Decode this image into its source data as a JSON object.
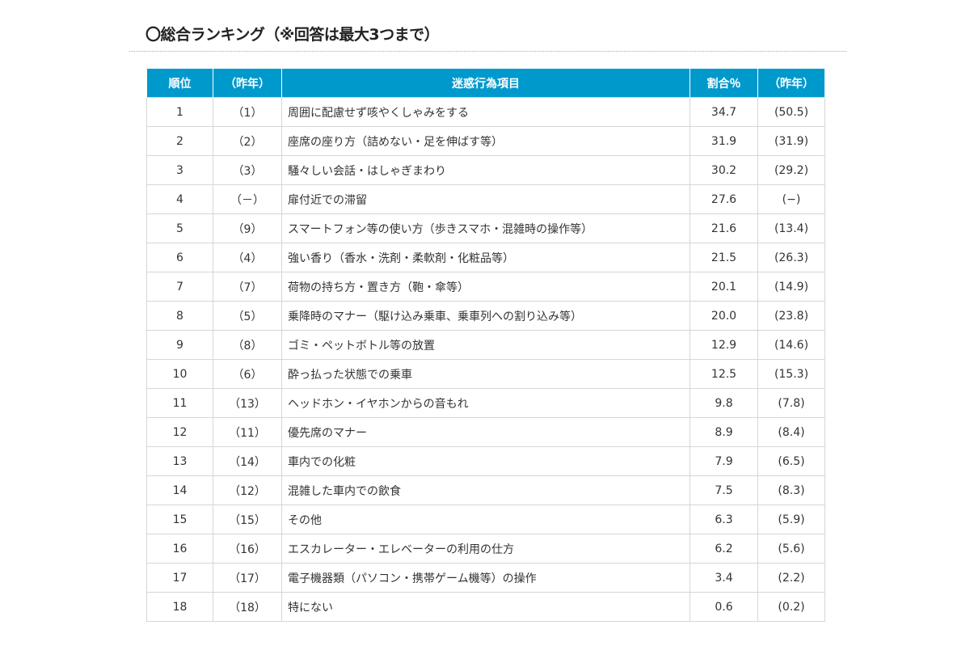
{
  "title": "〇総合ランキング（※回答は最大3つまで）",
  "header_color": "#0099cc",
  "columns": [
    "順位",
    "（昨年）",
    "迷惑行為項目",
    "割合％",
    "（昨年）"
  ],
  "rows": [
    [
      "1",
      "（1）",
      "周囲に配慮せず咳やくしゃみをする",
      "34.7",
      "(50.5)"
    ],
    [
      "2",
      "（2）",
      "座席の座り方（詰めない・足を伸ばす等）",
      "31.9",
      "(31.9)"
    ],
    [
      "3",
      "（3）",
      "騒々しい会話・はしゃぎまわり",
      "30.2",
      "(29.2)"
    ],
    [
      "4",
      "（－）",
      "扉付近での滞留",
      "27.6",
      "(−)"
    ],
    [
      "5",
      "（9）",
      "スマートフォン等の使い方（歩きスマホ・混雑時の操作等）",
      "21.6",
      "(13.4)"
    ],
    [
      "6",
      "（4）",
      "強い香り（香水・洗剤・柔軟剤・化粧品等）",
      "21.5",
      "(26.3)"
    ],
    [
      "7",
      "（7）",
      "荷物の持ち方・置き方（鞄・傘等）",
      "20.1",
      "(14.9)"
    ],
    [
      "8",
      "（5）",
      "乗降時のマナー（駆け込み乗車、乗車列への割り込み等）",
      "20.0",
      "(23.8)"
    ],
    [
      "9",
      "（8）",
      "ゴミ・ペットボトル等の放置",
      "12.9",
      "(14.6)"
    ],
    [
      "10",
      "（6）",
      "酔っ払った状態での乗車",
      "12.5",
      "(15.3)"
    ],
    [
      "11",
      "（13）",
      "ヘッドホン・イヤホンからの音もれ",
      "9.8",
      "(7.8)"
    ],
    [
      "12",
      "（11）",
      "優先席のマナー",
      "8.9",
      "(8.4)"
    ],
    [
      "13",
      "（14）",
      "車内での化粧",
      "7.9",
      "(6.5)"
    ],
    [
      "14",
      "（12）",
      "混雑した車内での飲食",
      "7.5",
      "(8.3)"
    ],
    [
      "15",
      "（15）",
      "その他",
      "6.3",
      "(5.9)"
    ],
    [
      "16",
      "（16）",
      "エスカレーター・エレベーターの利用の仕方",
      "6.2",
      "(5.6)"
    ],
    [
      "17",
      "（17）",
      "電子機器類（パソコン・携帯ゲーム機等）の操作",
      "3.4",
      "(2.2)"
    ],
    [
      "18",
      "（18）",
      "特にない",
      "0.6",
      "(0.2)"
    ]
  ]
}
